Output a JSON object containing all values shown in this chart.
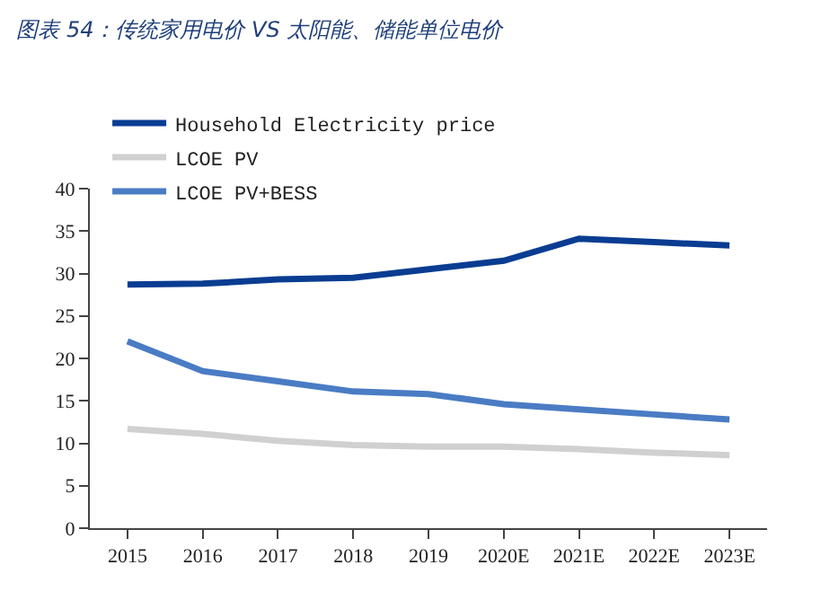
{
  "chart_data": {
    "type": "line",
    "title": "图表 54：传统家用电价 VS 太阳能、储能单位电价",
    "categories": [
      "2015",
      "2016",
      "2017",
      "2018",
      "2019",
      "2020E",
      "2021E",
      "2022E",
      "2023E"
    ],
    "series": [
      {
        "name": "Household Electricity price",
        "color": "#0a3d91",
        "values": [
          28.7,
          28.8,
          29.3,
          29.5,
          30.5,
          31.5,
          34.1,
          33.7,
          33.3
        ]
      },
      {
        "name": "LCOE PV",
        "color": "#d0d0d0",
        "values": [
          11.7,
          11.1,
          10.3,
          9.8,
          9.6,
          9.6,
          9.3,
          8.9,
          8.6
        ]
      },
      {
        "name": "LCOE PV+BESS",
        "color": "#4a7cc4",
        "values": [
          22.0,
          18.5,
          17.3,
          16.1,
          15.8,
          14.6,
          14.0,
          13.4,
          12.8
        ]
      }
    ],
    "ylim": [
      0,
      40
    ],
    "yticks": [
      0,
      5,
      10,
      15,
      20,
      25,
      30,
      35,
      40
    ],
    "legend": "top left",
    "marker": "none",
    "line_style": "solid"
  }
}
